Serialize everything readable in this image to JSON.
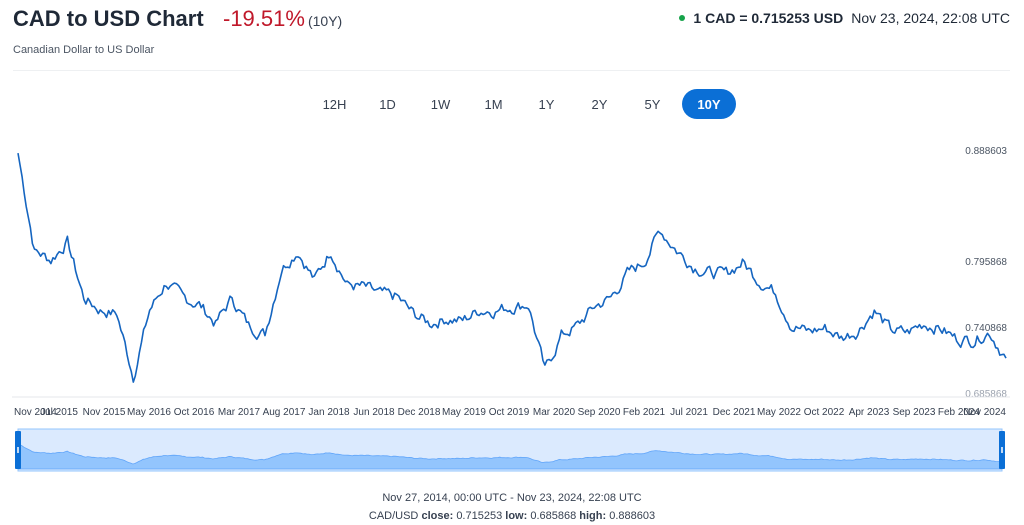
{
  "header": {
    "title": "CAD to USD Chart",
    "change": "-19.51%",
    "period": "(10Y)",
    "subtitle": "Canadian Dollar to US Dollar",
    "rate": "1 CAD = 0.715253 USD",
    "timestamp": "Nov 23, 2024, 22:08 UTC",
    "live_color": "#16a34a"
  },
  "ranges": [
    {
      "label": "12H",
      "active": false
    },
    {
      "label": "1D",
      "active": false
    },
    {
      "label": "1W",
      "active": false
    },
    {
      "label": "1M",
      "active": false
    },
    {
      "label": "1Y",
      "active": false
    },
    {
      "label": "2Y",
      "active": false
    },
    {
      "label": "5Y",
      "active": false
    },
    {
      "label": "10Y",
      "active": true
    }
  ],
  "footer": {
    "period_text": "Nov 27, 2014, 00:00 UTC - Nov 23, 2024, 22:08 UTC",
    "pair_label": "CAD/USD",
    "close_label": "close:",
    "close_value": "0.715253",
    "low_label": "low:",
    "low_value": "0.685868",
    "high_label": "high:",
    "high_value": "0.888603"
  },
  "chart_data": {
    "type": "line",
    "x_tick_labels": [
      "Nov 2014",
      "Jul 2015",
      "Nov 2015",
      "May 2016",
      "Oct 2016",
      "Mar 2017",
      "Aug 2017",
      "Jan 2018",
      "Jun 2018",
      "Dec 2018",
      "May 2019",
      "Oct 2019",
      "Mar 2020",
      "Sep 2020",
      "Feb 2021",
      "Jul 2021",
      "Dec 2021",
      "May 2022",
      "Oct 2022",
      "Apr 2023",
      "Sep 2023",
      "Feb 2024",
      "Nov 2024"
    ],
    "y_tick_labels": [
      "0.888603",
      "0.795868",
      "0.740868",
      "0.685868"
    ],
    "y_ticks": [
      0.888603,
      0.795868,
      0.740868,
      0.685868
    ],
    "ylim": [
      0.685868,
      0.888603
    ],
    "x": [
      "2014-11",
      "2015-01",
      "2015-03",
      "2015-05",
      "2015-07",
      "2015-09",
      "2015-11",
      "2016-01",
      "2016-03",
      "2016-05",
      "2016-07",
      "2016-09",
      "2016-11",
      "2017-01",
      "2017-03",
      "2017-05",
      "2017-07",
      "2017-09",
      "2017-11",
      "2018-01",
      "2018-03",
      "2018-05",
      "2018-07",
      "2018-09",
      "2018-11",
      "2019-01",
      "2019-03",
      "2019-05",
      "2019-07",
      "2019-09",
      "2019-11",
      "2020-01",
      "2020-03",
      "2020-05",
      "2020-07",
      "2020-09",
      "2020-11",
      "2021-01",
      "2021-03",
      "2021-05",
      "2021-07",
      "2021-09",
      "2021-11",
      "2022-01",
      "2022-03",
      "2022-05",
      "2022-07",
      "2022-09",
      "2022-11",
      "2023-01",
      "2023-03",
      "2023-05",
      "2023-07",
      "2023-09",
      "2023-11",
      "2024-01",
      "2024-03",
      "2024-05",
      "2024-07",
      "2024-09",
      "2024-11"
    ],
    "series": [
      {
        "values": [
          0.886,
          0.805,
          0.797,
          0.812,
          0.765,
          0.755,
          0.752,
          0.7,
          0.755,
          0.778,
          0.765,
          0.76,
          0.744,
          0.765,
          0.742,
          0.735,
          0.79,
          0.805,
          0.78,
          0.805,
          0.776,
          0.774,
          0.768,
          0.766,
          0.752,
          0.744,
          0.748,
          0.746,
          0.755,
          0.755,
          0.758,
          0.76,
          0.704,
          0.734,
          0.742,
          0.758,
          0.765,
          0.785,
          0.795,
          0.822,
          0.805,
          0.792,
          0.786,
          0.785,
          0.795,
          0.78,
          0.77,
          0.742,
          0.737,
          0.74,
          0.732,
          0.738,
          0.755,
          0.738,
          0.736,
          0.744,
          0.74,
          0.731,
          0.73,
          0.737,
          0.715
        ]
      }
    ],
    "line_color": "#1565c0",
    "grid": false
  }
}
